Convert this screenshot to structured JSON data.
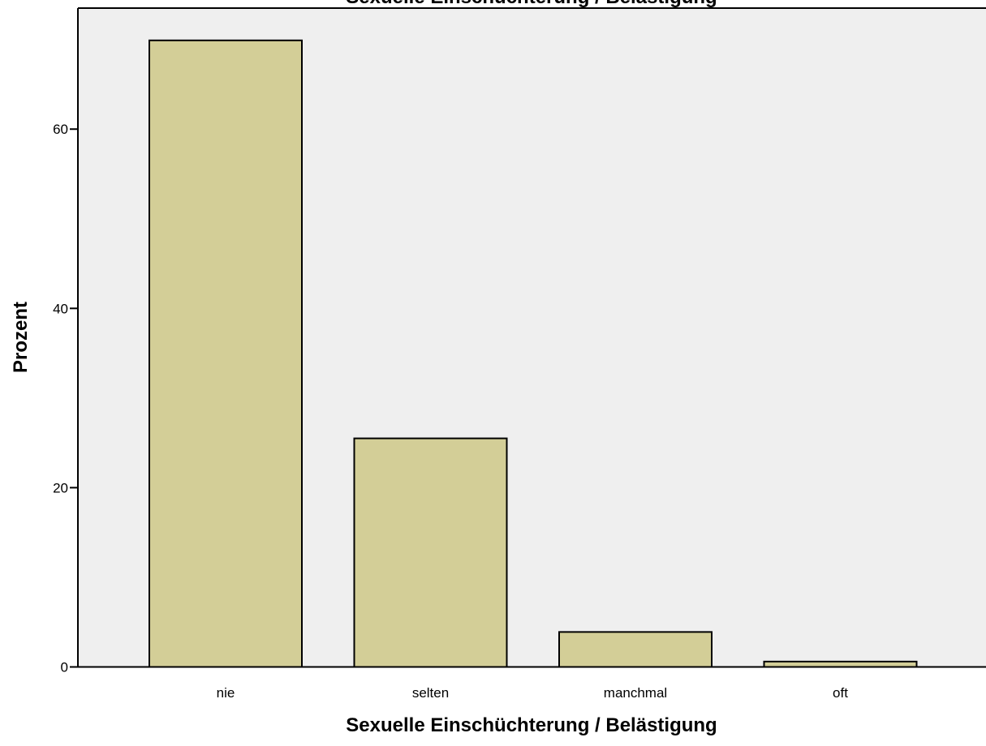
{
  "chart_data": {
    "type": "bar",
    "title": "Sexuelle Einschüchterung / Belästigung",
    "xlabel": "Sexuelle Einschüchterung / Belästigung",
    "ylabel": "Prozent",
    "categories": [
      "nie",
      "selten",
      "manchmal",
      "oft"
    ],
    "values": [
      69.9,
      25.5,
      3.9,
      0.6
    ],
    "ylim": [
      0,
      73.5
    ],
    "yticks": [
      0,
      20,
      40,
      60
    ],
    "grid": false,
    "legend": "none",
    "colors": {
      "plot_background": "#efefef",
      "bar_fill": "#d3ce97",
      "bar_stroke": "#000000",
      "axis": "#000000"
    }
  }
}
